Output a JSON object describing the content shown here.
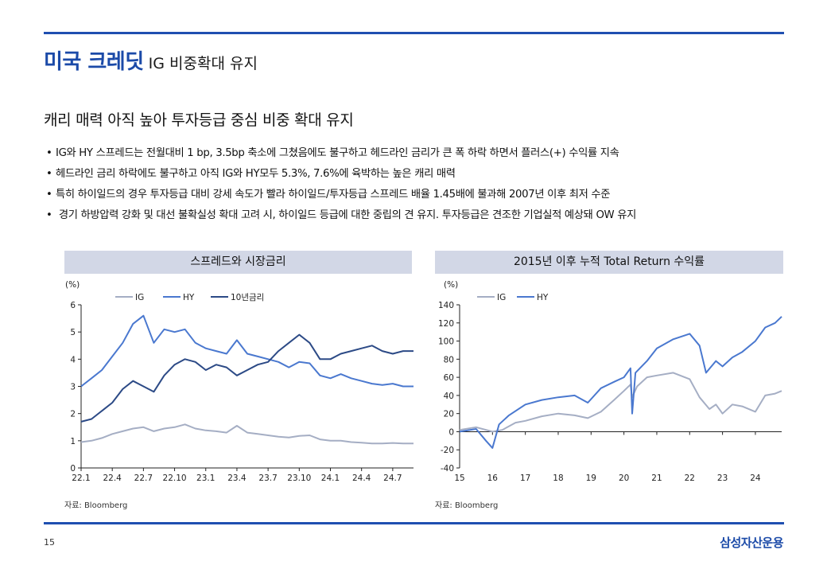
{
  "page": {
    "title_main": "미국 크레딧",
    "title_sub": "IG 비중확대 유지",
    "subtitle": "캐리 매력 아직 높아 투자등급 중심 비중 확대 유지",
    "bullets": [
      "IG와 HY 스프레드는 전월대비 1 bp, 3.5bp 축소에 그쳤음에도 불구하고 헤드라인 금리가 큰 폭 하락 하면서 플러스(+) 수익률 지속",
      "헤드라인 금리 하락에도 불구하고 아직 IG와 HY모두 5.3%, 7.6%에 육박하는 높은 캐리 매력",
      "특히 하이일드의 경우 투자등급 대비 강세 속도가 빨라 하이일드/투자등급 스프레드 배율 1.45배에 불과해 2007년 이후 최저 수준",
      " 경기 하방압력 강화 및 대선 불확실성 확대 고려 시, 하이일드 등급에 대한 중립의 견 유지. 투자등급은 견조한 기업실적 예상돼 OW 유지"
    ],
    "bullet_mark": "•",
    "page_number": "15",
    "logo": "삼성자산운용"
  },
  "colors": {
    "brand": "#1b4aa8",
    "header_bg": "#d2d7e6",
    "ig": "#a5aec4",
    "hy": "#4a78cf",
    "rate10y": "#2c4a86"
  },
  "chart_data": [
    {
      "type": "line",
      "header": "스프레드와 시장금리",
      "unit": "(%)",
      "source": "자료: Bloomberg",
      "ylim": [
        0,
        6
      ],
      "yticks": [
        0,
        1,
        2,
        3,
        4,
        5,
        6
      ],
      "xlim": [
        0,
        32
      ],
      "xticks": [
        0,
        3,
        6,
        9,
        12,
        15,
        18,
        21,
        24,
        27,
        30
      ],
      "xtick_labels": [
        "22.1",
        "22.4",
        "22.7",
        "22.10",
        "23.1",
        "23.4",
        "23.7",
        "23.10",
        "24.1",
        "24.4",
        "24.7"
      ],
      "series": [
        {
          "name": "IG",
          "color": "#a5aec4",
          "width": 2,
          "x": [
            0,
            1,
            2,
            3,
            4,
            5,
            6,
            7,
            8,
            9,
            10,
            11,
            12,
            13,
            14,
            15,
            16,
            17,
            18,
            19,
            20,
            21,
            22,
            23,
            24,
            25,
            26,
            27,
            28,
            29,
            30,
            31,
            32
          ],
          "y": [
            0.95,
            1.0,
            1.1,
            1.25,
            1.35,
            1.45,
            1.5,
            1.35,
            1.45,
            1.5,
            1.6,
            1.45,
            1.38,
            1.35,
            1.3,
            1.55,
            1.3,
            1.25,
            1.2,
            1.15,
            1.12,
            1.18,
            1.2,
            1.05,
            1.0,
            1.0,
            0.95,
            0.93,
            0.9,
            0.9,
            0.92,
            0.9,
            0.9
          ]
        },
        {
          "name": "HY",
          "color": "#4a78cf",
          "width": 2,
          "x": [
            0,
            1,
            2,
            3,
            4,
            5,
            6,
            7,
            8,
            9,
            10,
            11,
            12,
            13,
            14,
            15,
            16,
            17,
            18,
            19,
            20,
            21,
            22,
            23,
            24,
            25,
            26,
            27,
            28,
            29,
            30,
            31,
            32
          ],
          "y": [
            3.0,
            3.3,
            3.6,
            4.1,
            4.6,
            5.3,
            5.6,
            4.6,
            5.1,
            5.0,
            5.1,
            4.6,
            4.4,
            4.3,
            4.2,
            4.7,
            4.2,
            4.1,
            4.0,
            3.9,
            3.7,
            3.9,
            3.85,
            3.4,
            3.3,
            3.45,
            3.3,
            3.2,
            3.1,
            3.05,
            3.1,
            3.0,
            3.0
          ]
        },
        {
          "name": "10년금리",
          "color": "#2c4a86",
          "width": 2,
          "x": [
            0,
            1,
            2,
            3,
            4,
            5,
            6,
            7,
            8,
            9,
            10,
            11,
            12,
            13,
            14,
            15,
            16,
            17,
            18,
            19,
            20,
            21,
            22,
            23,
            24,
            25,
            26,
            27,
            28,
            29,
            30,
            31,
            32
          ],
          "y": [
            1.7,
            1.8,
            2.1,
            2.4,
            2.9,
            3.2,
            3.0,
            2.8,
            3.4,
            3.8,
            4.0,
            3.9,
            3.6,
            3.8,
            3.7,
            3.4,
            3.6,
            3.8,
            3.9,
            4.3,
            4.6,
            4.9,
            4.6,
            4.0,
            4.0,
            4.2,
            4.3,
            4.4,
            4.5,
            4.3,
            4.2,
            4.3,
            4.3
          ]
        }
      ]
    },
    {
      "type": "line",
      "header": "2015년 이후 누적 Total Return 수익률",
      "unit": "(%)",
      "source": "자료: Bloomberg",
      "ylim": [
        -40,
        140
      ],
      "yticks": [
        -40,
        -20,
        0,
        20,
        40,
        60,
        80,
        100,
        120,
        140
      ],
      "xlim": [
        15,
        24.8
      ],
      "xticks": [
        15,
        16,
        17,
        18,
        19,
        20,
        21,
        22,
        23,
        24
      ],
      "xtick_labels": [
        "15",
        "16",
        "17",
        "18",
        "19",
        "20",
        "21",
        "22",
        "23",
        "24"
      ],
      "series": [
        {
          "name": "IG",
          "color": "#a5aec4",
          "width": 2,
          "x": [
            15,
            15.5,
            16,
            16.3,
            16.7,
            17,
            17.5,
            18,
            18.5,
            18.9,
            19.3,
            19.7,
            20,
            20.2,
            20.25,
            20.4,
            20.7,
            21,
            21.5,
            22,
            22.3,
            22.6,
            22.8,
            23,
            23.3,
            23.6,
            24,
            24.3,
            24.6,
            24.8
          ],
          "y": [
            2,
            5,
            0,
            2,
            10,
            12,
            17,
            20,
            18,
            15,
            22,
            35,
            45,
            52,
            38,
            50,
            60,
            62,
            65,
            58,
            38,
            25,
            30,
            20,
            30,
            28,
            22,
            40,
            42,
            45
          ]
        },
        {
          "name": "HY",
          "color": "#4a78cf",
          "width": 2,
          "x": [
            15,
            15.5,
            15.8,
            16,
            16.2,
            16.5,
            17,
            17.5,
            18,
            18.5,
            18.9,
            19.3,
            19.7,
            20,
            20.2,
            20.25,
            20.35,
            20.7,
            21,
            21.5,
            22,
            22.3,
            22.5,
            22.8,
            23,
            23.3,
            23.6,
            24,
            24.3,
            24.6,
            24.8
          ],
          "y": [
            0,
            3,
            -10,
            -18,
            8,
            18,
            30,
            35,
            38,
            40,
            32,
            48,
            55,
            60,
            70,
            20,
            65,
            78,
            92,
            102,
            108,
            95,
            65,
            78,
            72,
            82,
            88,
            100,
            115,
            120,
            127
          ]
        }
      ]
    }
  ]
}
